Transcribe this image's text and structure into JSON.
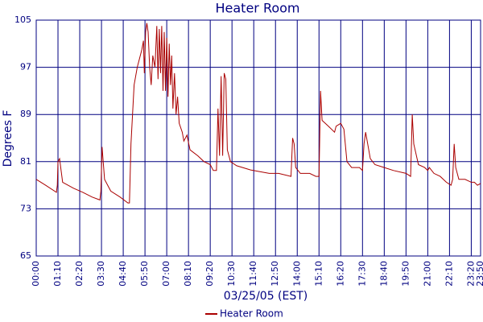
{
  "chart_data": {
    "type": "line",
    "title": "Heater Room",
    "x_label": "03/25/05 (EST)",
    "y_label": "Degrees F",
    "x": [
      "00:00",
      "00:30",
      "01:05",
      "01:08",
      "01:10",
      "01:15",
      "01:25",
      "02:00",
      "02:30",
      "03:00",
      "03:25",
      "03:28",
      "03:32",
      "03:40",
      "04:00",
      "04:30",
      "04:55",
      "05:00",
      "05:05",
      "05:15",
      "05:25",
      "05:40",
      "05:45",
      "05:48",
      "05:52",
      "05:56",
      "06:00",
      "06:05",
      "06:10",
      "06:15",
      "06:22",
      "06:28",
      "06:32",
      "06:36",
      "06:40",
      "06:44",
      "06:48",
      "06:52",
      "06:56",
      "07:00",
      "07:04",
      "07:08",
      "07:12",
      "07:16",
      "07:20",
      "07:25",
      "07:30",
      "07:35",
      "07:40",
      "07:50",
      "07:55",
      "08:05",
      "08:15",
      "08:40",
      "09:00",
      "09:20",
      "09:30",
      "09:40",
      "09:45",
      "09:50",
      "09:55",
      "10:00",
      "10:05",
      "10:10",
      "10:15",
      "10:25",
      "10:45",
      "11:30",
      "12:30",
      "13:00",
      "13:40",
      "13:45",
      "13:50",
      "13:55",
      "14:10",
      "14:40",
      "15:00",
      "15:10",
      "15:15",
      "15:20",
      "15:40",
      "16:00",
      "16:05",
      "16:20",
      "16:30",
      "16:40",
      "16:55",
      "17:20",
      "17:30",
      "17:35",
      "17:40",
      "17:55",
      "18:10",
      "18:40",
      "19:10",
      "19:50",
      "20:05",
      "20:10",
      "20:15",
      "20:30",
      "20:50",
      "21:00",
      "21:05",
      "21:20",
      "21:40",
      "22:00",
      "22:15",
      "22:20",
      "22:25",
      "22:30",
      "22:40",
      "23:00",
      "23:20",
      "23:30",
      "23:40",
      "23:50"
    ],
    "series": [
      {
        "name": "Heater Room",
        "color": "#aa0000",
        "values": [
          78,
          77,
          75.8,
          77,
          81,
          81.5,
          77.5,
          76.5,
          75.8,
          75,
          74.5,
          76,
          83.5,
          78,
          76,
          75,
          74,
          74,
          84,
          94,
          97,
          100,
          101.5,
          96,
          103,
          104.5,
          103,
          97,
          94,
          99,
          97,
          104,
          95,
          103.5,
          96,
          104,
          93,
          103,
          93,
          102,
          92,
          101,
          94,
          99,
          90,
          96,
          89,
          92,
          87.5,
          86,
          84.5,
          85.5,
          83,
          82,
          81,
          80.5,
          79.5,
          79.5,
          90,
          82,
          95.5,
          82,
          96,
          95,
          83,
          81,
          80.3,
          79.6,
          79,
          79,
          78.5,
          85,
          84,
          80,
          79,
          79,
          78.5,
          78.5,
          93,
          88,
          87,
          86,
          87,
          87.5,
          86.5,
          81,
          80,
          80,
          79.5,
          84,
          86,
          81.5,
          80.5,
          80,
          79.5,
          79,
          78.5,
          89,
          84,
          80.5,
          80,
          79.5,
          80,
          79,
          78.5,
          77.5,
          77,
          78,
          84,
          80,
          78,
          78,
          77.5,
          77.5,
          77,
          77.3
        ]
      }
    ],
    "xlim": [
      "00:00",
      "23:50"
    ],
    "xticks": [
      "00:00",
      "01:10",
      "02:20",
      "03:30",
      "04:40",
      "05:50",
      "07:00",
      "08:10",
      "09:20",
      "10:30",
      "11:40",
      "12:50",
      "14:00",
      "15:10",
      "16:20",
      "17:30",
      "18:40",
      "19:50",
      "21:00",
      "22:10",
      "23:20",
      "23:50"
    ],
    "ylim": [
      65,
      105
    ],
    "yticks": [
      65,
      73,
      81,
      89,
      97,
      105
    ],
    "grid": true
  }
}
